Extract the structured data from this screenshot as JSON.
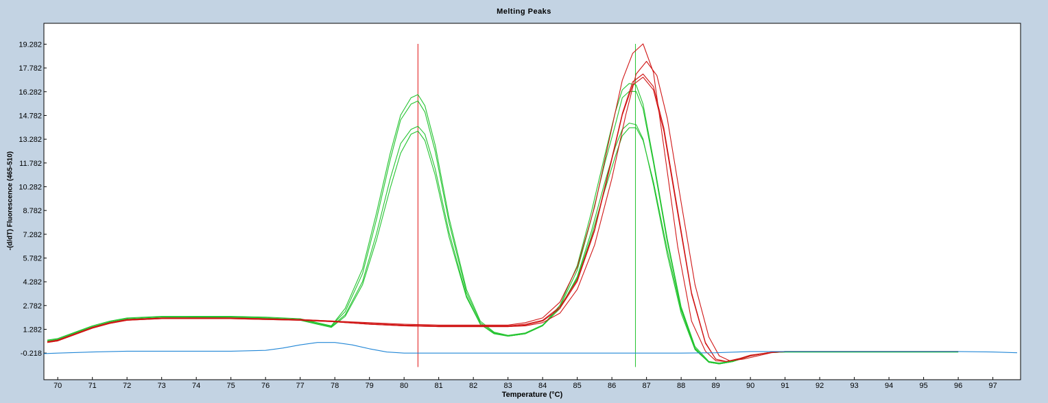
{
  "chart_data": {
    "type": "line",
    "title": "Melting Peaks",
    "xlabel": "Temperature (°C)",
    "ylabel": "-(d/dT) Fluorescence (465-510)",
    "xlim": [
      69.6,
      97.8
    ],
    "ylim": [
      -1.9,
      20.6
    ],
    "xticks": [
      70,
      71,
      72,
      73,
      74,
      75,
      76,
      77,
      78,
      79,
      80,
      81,
      82,
      83,
      84,
      85,
      86,
      87,
      88,
      89,
      90,
      91,
      92,
      93,
      94,
      95,
      96,
      97
    ],
    "yticks": [
      "-0.218",
      "1.282",
      "2.782",
      "4.282",
      "5.782",
      "7.282",
      "8.782",
      "10.282",
      "11.782",
      "13.282",
      "14.782",
      "16.282",
      "17.782",
      "19.282"
    ],
    "grid": false,
    "markers": [
      {
        "x": 80.4,
        "color": "#e01010",
        "ymin": -1.1,
        "ymax": 19.3
      },
      {
        "x": 86.68,
        "color": "#22c32e",
        "ymin": -1.1,
        "ymax": 19.3
      }
    ],
    "series": [
      {
        "color": "#22c32e",
        "x": [
          69.7,
          70,
          70.5,
          71,
          71.5,
          72,
          73,
          74,
          75,
          76,
          77,
          77.6,
          77.9,
          78.3,
          78.8,
          79.2,
          79.6,
          79.9,
          80.2,
          80.4,
          80.6,
          80.9,
          81.3,
          81.8,
          82.2,
          82.6,
          83,
          83.5,
          84,
          84.5,
          85,
          85.4,
          85.8,
          86.1,
          86.3,
          86.5,
          86.7,
          86.9,
          87.2,
          87.6,
          88,
          88.4,
          88.8,
          89.1,
          89.5,
          90,
          90.5,
          91,
          92,
          93,
          94,
          95,
          96
        ],
        "y": [
          0.5,
          0.6,
          1,
          1.4,
          1.7,
          1.9,
          2,
          2.05,
          2.05,
          2,
          1.9,
          1.6,
          1.5,
          2.4,
          4.8,
          8.2,
          12,
          14.5,
          15.5,
          15.7,
          15,
          12.5,
          8,
          3.6,
          1.7,
          1.05,
          0.85,
          1,
          1.5,
          2.8,
          5.3,
          8.6,
          12.3,
          15,
          16.4,
          16.8,
          16.7,
          15.5,
          12,
          7,
          2.7,
          0.2,
          -0.75,
          -0.85,
          -0.7,
          -0.4,
          -0.2,
          -0.15,
          -0.15,
          -0.15,
          -0.15,
          -0.15,
          -0.15
        ]
      },
      {
        "color": "#22c32e",
        "x": [
          69.7,
          70,
          70.5,
          71,
          71.5,
          72,
          73,
          74,
          75,
          76,
          77,
          77.6,
          77.9,
          78.3,
          78.8,
          79.2,
          79.6,
          79.9,
          80.2,
          80.4,
          80.6,
          80.9,
          81.3,
          81.8,
          82.2,
          82.6,
          83,
          83.5,
          84,
          84.5,
          85,
          85.4,
          85.8,
          86.1,
          86.3,
          86.5,
          86.7,
          86.9,
          87.2,
          87.6,
          88,
          88.4,
          88.8,
          89.1,
          89.5,
          90,
          90.5,
          91,
          92,
          93,
          94,
          95,
          96
        ],
        "y": [
          0.6,
          0.7,
          1.1,
          1.5,
          1.8,
          2,
          2.1,
          2.1,
          2.1,
          2.05,
          1.95,
          1.65,
          1.5,
          2.6,
          5.1,
          8.6,
          12.4,
          14.8,
          15.9,
          16.1,
          15.4,
          12.9,
          8.3,
          3.8,
          1.8,
          1.1,
          0.9,
          1.05,
          1.55,
          2.7,
          5,
          8.2,
          11.8,
          14.2,
          15.9,
          16.3,
          16.3,
          15.2,
          11.8,
          6.8,
          2.6,
          0.1,
          -0.8,
          -0.9,
          -0.75,
          -0.4,
          -0.2,
          -0.15,
          -0.15,
          -0.15,
          -0.15,
          -0.15,
          -0.15
        ]
      },
      {
        "color": "#22c32e",
        "x": [
          69.7,
          70,
          70.5,
          71,
          71.5,
          72,
          73,
          74,
          75,
          76,
          77,
          77.6,
          77.9,
          78.3,
          78.8,
          79.2,
          79.6,
          79.9,
          80.2,
          80.4,
          80.6,
          80.9,
          81.3,
          81.8,
          82.2,
          82.6,
          83,
          83.5,
          84,
          84.5,
          85,
          85.4,
          85.8,
          86.1,
          86.3,
          86.5,
          86.7,
          86.9,
          87.2,
          87.6,
          88,
          88.4,
          88.8,
          89.1,
          89.5,
          90,
          90.5,
          91,
          92,
          93,
          94,
          95,
          96
        ],
        "y": [
          0.55,
          0.65,
          1.05,
          1.45,
          1.75,
          1.95,
          2.05,
          2.05,
          2.05,
          2,
          1.9,
          1.6,
          1.45,
          2.2,
          4.3,
          7.3,
          10.8,
          13,
          13.9,
          14.1,
          13.6,
          11.4,
          7.4,
          3.4,
          1.6,
          1,
          0.85,
          1,
          1.5,
          2.6,
          4.6,
          7.4,
          10.6,
          12.8,
          13.9,
          14.3,
          14.2,
          13.3,
          10.4,
          6,
          2.3,
          0,
          -0.8,
          -0.9,
          -0.75,
          -0.4,
          -0.2,
          -0.15,
          -0.15,
          -0.15,
          -0.15,
          -0.15,
          -0.15
        ]
      },
      {
        "color": "#22c32e",
        "x": [
          69.7,
          70,
          70.5,
          71,
          71.5,
          72,
          73,
          74,
          75,
          76,
          77,
          77.6,
          77.9,
          78.3,
          78.8,
          79.2,
          79.6,
          79.9,
          80.2,
          80.4,
          80.6,
          80.9,
          81.3,
          81.8,
          82.2,
          82.6,
          83,
          83.5,
          84,
          84.5,
          85,
          85.4,
          85.8,
          86.1,
          86.3,
          86.5,
          86.7,
          86.9,
          87.2,
          87.6,
          88,
          88.4,
          88.8,
          89.1,
          89.5,
          90,
          90.5,
          91,
          92,
          93,
          94,
          95,
          96
        ],
        "y": [
          0.5,
          0.6,
          1,
          1.4,
          1.7,
          1.9,
          2,
          2.05,
          2,
          1.95,
          1.85,
          1.55,
          1.4,
          2.1,
          4.1,
          6.9,
          10.2,
          12.4,
          13.6,
          13.8,
          13.2,
          11,
          7.1,
          3.3,
          1.6,
          1,
          0.85,
          1,
          1.5,
          2.6,
          4.5,
          7.1,
          10.1,
          12.2,
          13.5,
          14,
          14,
          13.2,
          10.6,
          6.3,
          2.5,
          0.05,
          -0.8,
          -0.9,
          -0.75,
          -0.4,
          -0.2,
          -0.15,
          -0.15,
          -0.15,
          -0.15,
          -0.15,
          -0.15
        ]
      },
      {
        "color": "#d01414",
        "x": [
          69.7,
          70,
          70.5,
          71,
          71.5,
          72,
          73,
          74,
          75,
          76,
          77,
          78,
          79,
          80,
          81,
          82,
          83,
          83.5,
          84,
          84.5,
          85,
          85.5,
          86,
          86.3,
          86.6,
          86.9,
          87.2,
          87.5,
          87.9,
          88.3,
          88.7,
          89,
          89.3,
          89.7,
          90,
          90.5,
          91,
          92,
          93,
          94,
          95,
          96
        ],
        "y": [
          0.45,
          0.55,
          0.95,
          1.35,
          1.65,
          1.85,
          1.95,
          1.95,
          1.95,
          1.9,
          1.85,
          1.75,
          1.6,
          1.5,
          1.45,
          1.45,
          1.45,
          1.55,
          1.8,
          2.6,
          4.3,
          7.5,
          12,
          14.8,
          16.7,
          17.2,
          16.4,
          13.8,
          8.6,
          3.5,
          0.4,
          -0.6,
          -0.75,
          -0.6,
          -0.4,
          -0.2,
          -0.12,
          -0.12,
          -0.12,
          -0.12,
          -0.12,
          -0.12
        ]
      },
      {
        "color": "#d01414",
        "x": [
          69.7,
          70,
          70.5,
          71,
          71.5,
          72,
          73,
          74,
          75,
          76,
          77,
          78,
          79,
          80,
          81,
          82,
          83,
          83.5,
          84,
          84.5,
          85,
          85.5,
          86,
          86.3,
          86.6,
          86.9,
          87.2,
          87.5,
          87.9,
          88.3,
          88.7,
          89,
          89.3,
          89.7,
          90,
          90.5,
          91,
          92,
          93,
          94,
          95,
          96
        ],
        "y": [
          0.5,
          0.6,
          1,
          1.4,
          1.7,
          1.9,
          2,
          2,
          2,
          1.95,
          1.9,
          1.8,
          1.65,
          1.55,
          1.5,
          1.5,
          1.5,
          1.6,
          1.85,
          2.7,
          4.4,
          7.6,
          12.1,
          14.9,
          16.9,
          17.4,
          16.6,
          14,
          8.8,
          3.6,
          0.45,
          -0.6,
          -0.75,
          -0.6,
          -0.4,
          -0.2,
          -0.12,
          -0.12,
          -0.12,
          -0.12,
          -0.12,
          -0.12
        ]
      },
      {
        "color": "#d01414",
        "x": [
          69.7,
          70,
          70.5,
          71,
          71.5,
          72,
          73,
          74,
          75,
          76,
          77,
          78,
          79,
          80,
          81,
          82,
          83,
          83.5,
          84,
          84.5,
          85,
          85.5,
          86,
          86.3,
          86.6,
          86.9,
          87.2,
          87.5,
          87.9,
          88.3,
          88.7,
          89,
          89.3,
          89.7,
          90,
          90.5,
          91,
          92,
          93,
          94,
          95,
          96
        ],
        "y": [
          0.5,
          0.6,
          1,
          1.4,
          1.7,
          1.9,
          2,
          2,
          2,
          1.95,
          1.9,
          1.8,
          1.7,
          1.6,
          1.55,
          1.55,
          1.55,
          1.7,
          2,
          3,
          5.2,
          9,
          14,
          17,
          18.7,
          19.3,
          17.5,
          12.8,
          6.5,
          1.8,
          -0.1,
          -0.7,
          -0.75,
          -0.55,
          -0.35,
          -0.2,
          -0.12,
          -0.12,
          -0.12,
          -0.12,
          -0.12,
          -0.12
        ]
      },
      {
        "color": "#d01414",
        "x": [
          69.7,
          70,
          70.5,
          71,
          71.5,
          72,
          73,
          74,
          75,
          76,
          77,
          78,
          79,
          80,
          81,
          82,
          83,
          83.5,
          84,
          84.5,
          85,
          85.5,
          86,
          86.4,
          86.7,
          87,
          87.3,
          87.6,
          88,
          88.4,
          88.8,
          89.1,
          89.4,
          89.8,
          90.2,
          90.6,
          91,
          92,
          93,
          94,
          95,
          96
        ],
        "y": [
          0.45,
          0.55,
          0.95,
          1.35,
          1.65,
          1.85,
          1.95,
          1.95,
          1.95,
          1.9,
          1.85,
          1.75,
          1.6,
          1.5,
          1.45,
          1.45,
          1.45,
          1.5,
          1.7,
          2.3,
          3.8,
          6.6,
          10.8,
          14.8,
          17.4,
          18.2,
          17.3,
          14.6,
          9.3,
          4.1,
          0.8,
          -0.4,
          -0.7,
          -0.6,
          -0.4,
          -0.2,
          -0.12,
          -0.12,
          -0.12,
          -0.12,
          -0.12,
          -0.12
        ]
      },
      {
        "color": "#1f85d6",
        "x": [
          69.6,
          70,
          71,
          72,
          73,
          74,
          75,
          76,
          76.5,
          77,
          77.5,
          78,
          78.5,
          79,
          79.5,
          80,
          81,
          82,
          83,
          84,
          85,
          86,
          87,
          88,
          89,
          90,
          91,
          92,
          93,
          94,
          95,
          96,
          97,
          97.7
        ],
        "y": [
          -0.25,
          -0.22,
          -0.15,
          -0.1,
          -0.1,
          -0.1,
          -0.1,
          -0.05,
          0.1,
          0.3,
          0.45,
          0.45,
          0.3,
          0.05,
          -0.15,
          -0.22,
          -0.22,
          -0.22,
          -0.22,
          -0.22,
          -0.22,
          -0.22,
          -0.22,
          -0.22,
          -0.2,
          -0.12,
          -0.12,
          -0.12,
          -0.12,
          -0.12,
          -0.12,
          -0.12,
          -0.15,
          -0.2
        ]
      }
    ]
  }
}
